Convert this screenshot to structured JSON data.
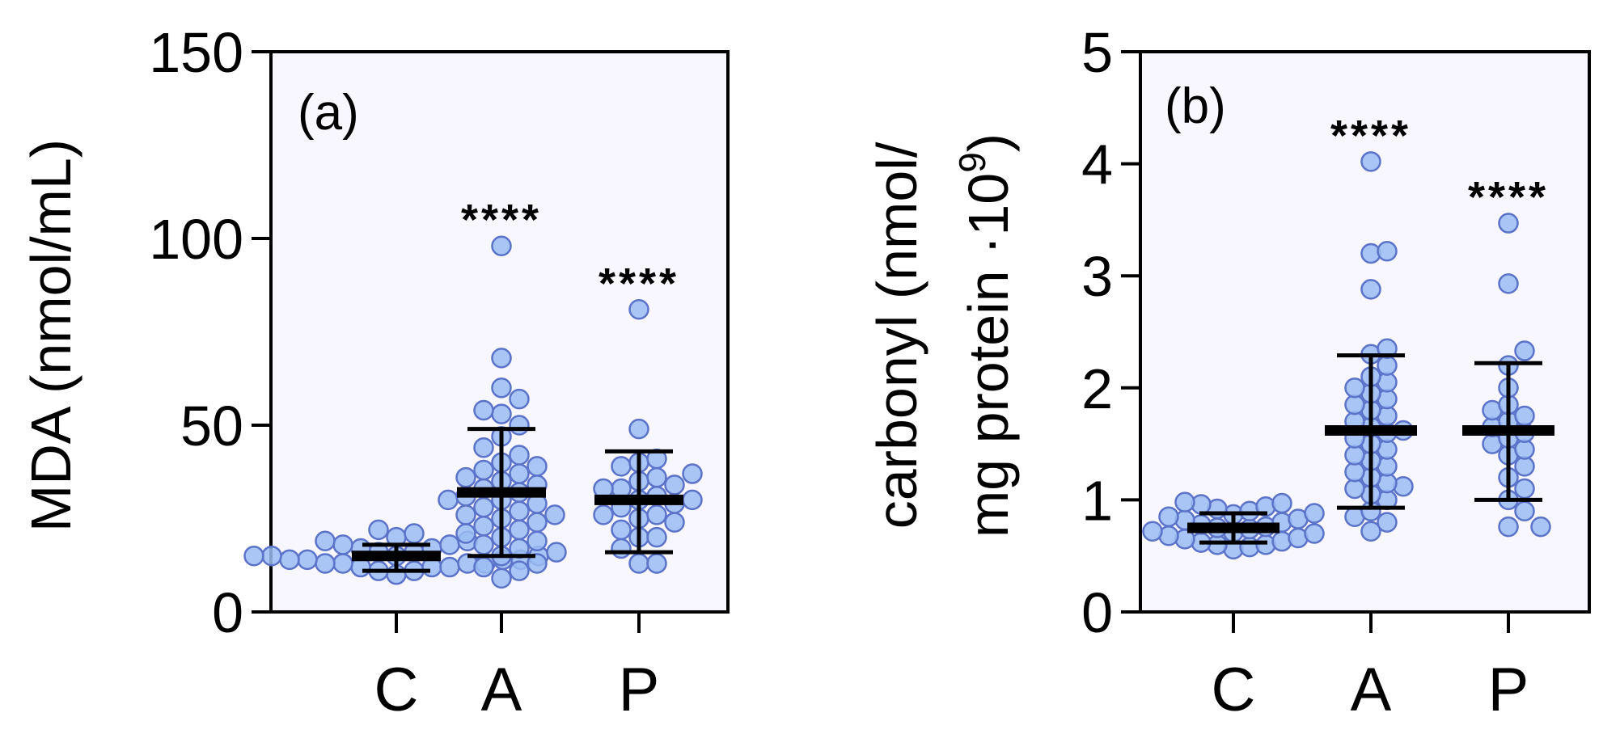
{
  "colors": {
    "point_fill": "#9bbcf3",
    "point_stroke": "#5b74c9",
    "plot_bg": "#f8f6fe"
  },
  "chart_data": [
    {
      "type": "scatter",
      "panel_label": "(a)",
      "ylabel": "MDA (nmol/mL)",
      "ylim": [
        0,
        150
      ],
      "yticks": [
        0,
        50,
        100,
        150
      ],
      "categories": [
        "C",
        "A",
        "P"
      ],
      "significance": [
        "",
        "****",
        "****"
      ],
      "groups": [
        {
          "category": "C",
          "mean": 15,
          "error_low": 11,
          "error_high": 18,
          "values": [
            10,
            11,
            11,
            12,
            12,
            12,
            13,
            13,
            13,
            13,
            14,
            14,
            14,
            14,
            15,
            15,
            15,
            15,
            16,
            16,
            16,
            17,
            17,
            18,
            18,
            19,
            19,
            20,
            21,
            22
          ]
        },
        {
          "category": "A",
          "mean": 32,
          "error_low": 15,
          "error_high": 49,
          "values": [
            9,
            11,
            12,
            13,
            15,
            17,
            18,
            19,
            20,
            21,
            22,
            23,
            24,
            25,
            26,
            26,
            27,
            28,
            29,
            30,
            30,
            31,
            32,
            33,
            34,
            35,
            36,
            37,
            38,
            39,
            40,
            42,
            44,
            47,
            50,
            53,
            54,
            57,
            60,
            68,
            98
          ]
        },
        {
          "category": "P",
          "mean": 30,
          "error_low": 16,
          "error_high": 43,
          "values": [
            13,
            13,
            17,
            20,
            20,
            22,
            24,
            25,
            26,
            26,
            28,
            29,
            30,
            30,
            31,
            33,
            33,
            34,
            35,
            36,
            37,
            39,
            40,
            41,
            49,
            81
          ]
        }
      ]
    },
    {
      "type": "scatter",
      "panel_label": "(b)",
      "ylabel_lines": [
        "carbonyl (nmol/",
        "mg protein ·10"
      ],
      "ylabel_superscript": "9",
      "ylabel_suffix": ")",
      "ylim": [
        0,
        5
      ],
      "yticks": [
        0,
        1,
        2,
        3,
        4,
        5
      ],
      "categories": [
        "C",
        "A",
        "P"
      ],
      "significance": [
        "",
        "****",
        "****"
      ],
      "groups": [
        {
          "category": "C",
          "mean": 0.75,
          "error_low": 0.62,
          "error_high": 0.88,
          "values": [
            0.56,
            0.58,
            0.6,
            0.6,
            0.62,
            0.63,
            0.65,
            0.66,
            0.68,
            0.7,
            0.71,
            0.72,
            0.74,
            0.75,
            0.76,
            0.78,
            0.8,
            0.82,
            0.83,
            0.85,
            0.87,
            0.88,
            0.9,
            0.92,
            0.94,
            0.96,
            0.97,
            0.98
          ]
        },
        {
          "category": "A",
          "mean": 1.62,
          "error_low": 0.93,
          "error_high": 2.29,
          "values": [
            0.72,
            0.8,
            0.85,
            0.9,
            1.0,
            1.05,
            1.1,
            1.12,
            1.15,
            1.2,
            1.25,
            1.3,
            1.35,
            1.4,
            1.45,
            1.5,
            1.55,
            1.6,
            1.62,
            1.65,
            1.7,
            1.75,
            1.8,
            1.85,
            1.9,
            1.95,
            2.0,
            2.05,
            2.1,
            2.2,
            2.3,
            2.35,
            2.88,
            3.2,
            3.22,
            4.02
          ]
        },
        {
          "category": "P",
          "mean": 1.62,
          "error_low": 1.0,
          "error_high": 2.22,
          "values": [
            0.76,
            0.76,
            0.9,
            1.0,
            1.1,
            1.2,
            1.3,
            1.4,
            1.45,
            1.5,
            1.55,
            1.6,
            1.65,
            1.7,
            1.75,
            1.8,
            1.85,
            2.0,
            2.2,
            2.33,
            2.93,
            3.47
          ]
        }
      ]
    }
  ]
}
